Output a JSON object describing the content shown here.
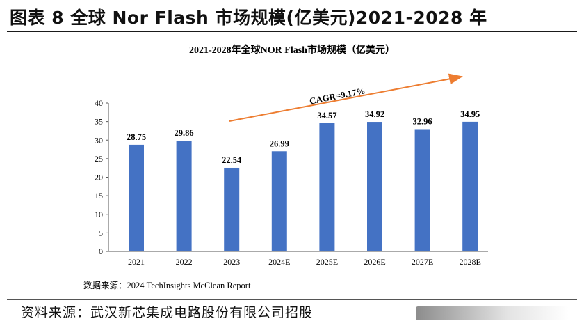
{
  "figure_title": "图表 8 全球 Nor Flash 市场规模(亿美元)2021-2028 年",
  "footer": "资料来源：武汉新芯集成电路股份有限公司招股",
  "colors": {
    "bar": "#4472C4",
    "arrow": "#ED7D31",
    "axis": "#555555"
  },
  "chart_data": {
    "type": "bar",
    "title": "2021-2028年全球NOR Flash市场规模（亿美元）",
    "categories": [
      "2021",
      "2022",
      "2023",
      "2024E",
      "2025E",
      "2026E",
      "2027E",
      "2028E"
    ],
    "values": [
      28.75,
      29.86,
      22.54,
      26.99,
      34.57,
      34.92,
      32.96,
      34.95
    ],
    "data_labels": [
      "28.75",
      "29.86",
      "22.54",
      "26.99",
      "34.57",
      "34.92",
      "32.96",
      "34.95"
    ],
    "ylim": [
      0,
      40
    ],
    "yticks": [
      0,
      5,
      10,
      15,
      20,
      25,
      30,
      35,
      40
    ],
    "annotation": "CAGR=9.17%",
    "source": "数据来源：2024 TechInsights McClean Report",
    "grid": false,
    "legend": "none"
  }
}
